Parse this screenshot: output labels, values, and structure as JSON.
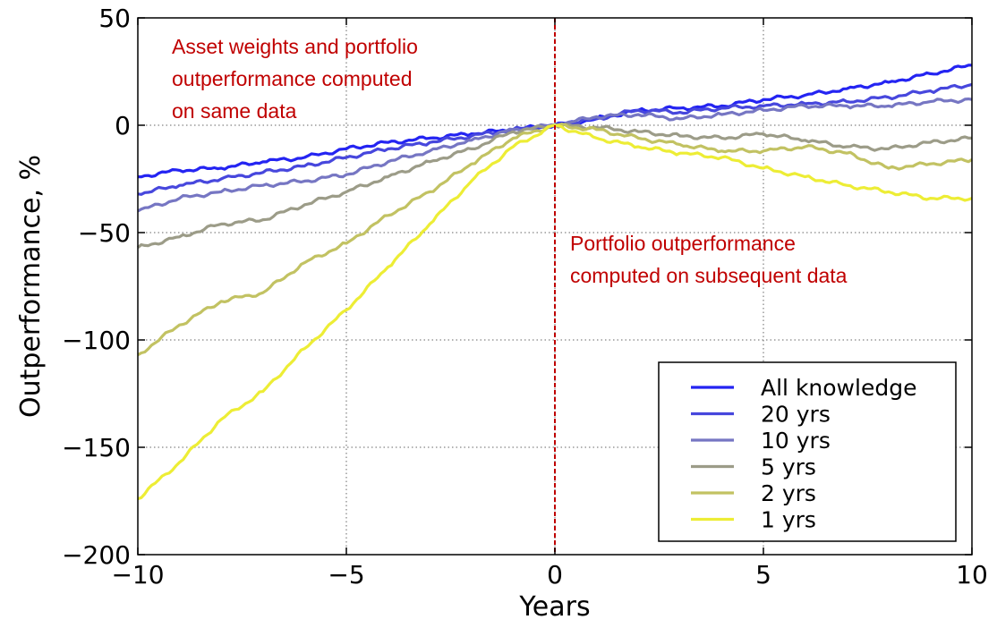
{
  "chart_data": {
    "type": "line",
    "xlabel": "Years",
    "ylabel": "Outperformance, %",
    "xlim": [
      -10,
      10
    ],
    "ylim": [
      -200,
      50
    ],
    "xticks": [
      -10,
      -5,
      0,
      5,
      10
    ],
    "yticks": [
      50,
      0,
      -50,
      -100,
      -150,
      -200
    ],
    "x_tick_labels": [
      "−10",
      "−5",
      "0",
      "5",
      "10"
    ],
    "y_tick_labels": [
      "50",
      "0",
      "−50",
      "−100",
      "−150",
      "−200"
    ],
    "grid": true,
    "grid_style": "dotted",
    "legend_position": "bottom-right",
    "vline": {
      "x": 0,
      "style": "dashed",
      "color": "#c00000"
    },
    "annotations": [
      {
        "lines": [
          "Asset weights and portfolio",
          "outperformance computed",
          "on same data"
        ],
        "color": "#c00000"
      },
      {
        "lines": [
          "Portfolio outperformance",
          "computed on subsequent data"
        ],
        "color": "#c00000"
      }
    ],
    "series": [
      {
        "name": "All knowledge",
        "color": "#2424f2",
        "x": [
          -10,
          -9,
          -8,
          -7,
          -6,
          -5,
          -4,
          -3,
          -2,
          -1,
          0,
          1,
          2,
          3,
          4,
          5,
          6,
          7,
          8,
          9,
          10
        ],
        "y": [
          -24,
          -21,
          -20,
          -17,
          -15,
          -11,
          -8,
          -6,
          -4,
          -2,
          0,
          3,
          7,
          8,
          9,
          12,
          14,
          17,
          20,
          24,
          28
        ]
      },
      {
        "name": "20 yrs",
        "color": "#4747dd",
        "x": [
          -10,
          -9,
          -8,
          -7,
          -6,
          -5,
          -4,
          -3,
          -2,
          -1,
          0,
          1,
          2,
          3,
          4,
          5,
          6,
          7,
          8,
          9,
          10
        ],
        "y": [
          -32,
          -28,
          -25,
          -22,
          -19,
          -15,
          -11,
          -8,
          -5,
          -2,
          0,
          3,
          7,
          6,
          8,
          9,
          10,
          11,
          13,
          16,
          19
        ]
      },
      {
        "name": "10 yrs",
        "color": "#7676c3",
        "x": [
          -10,
          -9,
          -8,
          -7,
          -6,
          -5,
          -4,
          -3,
          -2,
          -1,
          0,
          1,
          2,
          3,
          4,
          5,
          6,
          7,
          8,
          9,
          10
        ],
        "y": [
          -40,
          -34,
          -31,
          -28,
          -26,
          -23,
          -17,
          -12,
          -7,
          -2,
          0,
          4,
          5,
          3,
          5,
          7,
          9,
          9,
          9,
          11,
          12
        ]
      },
      {
        "name": "5 yrs",
        "color": "#9c9c88",
        "x": [
          -10,
          -9,
          -8,
          -7,
          -6,
          -5,
          -4,
          -3,
          -2,
          -1,
          0,
          1,
          2,
          3,
          4,
          5,
          6,
          7,
          8,
          9,
          10
        ],
        "y": [
          -57,
          -52,
          -46,
          -44,
          -37,
          -31,
          -24,
          -17,
          -11,
          -3,
          0,
          -1,
          -3,
          -5,
          -6,
          -4,
          -7,
          -10,
          -11,
          -8,
          -6
        ]
      },
      {
        "name": "2 yrs",
        "color": "#c2c262",
        "x": [
          -10,
          -9,
          -8,
          -7,
          -6,
          -5,
          -4,
          -3,
          -2,
          -1,
          0,
          1,
          2,
          3,
          4,
          5,
          6,
          7,
          8,
          9,
          10
        ],
        "y": [
          -107,
          -93,
          -82,
          -78,
          -64,
          -55,
          -42,
          -31,
          -18,
          -6,
          0,
          -2,
          -6,
          -9,
          -12,
          -12,
          -10,
          -13,
          -20,
          -18,
          -16
        ]
      },
      {
        "name": "1 yrs",
        "color": "#eded35",
        "x": [
          -10,
          -9,
          -8,
          -7,
          -6,
          -5,
          -4,
          -3,
          -2,
          -1,
          0,
          1,
          2,
          3,
          4,
          5,
          6,
          7,
          8,
          9,
          10
        ],
        "y": [
          -174,
          -157,
          -137,
          -124,
          -104,
          -86,
          -66,
          -46,
          -26,
          -10,
          0,
          -6,
          -10,
          -13,
          -15,
          -20,
          -24,
          -28,
          -31,
          -34,
          -34
        ]
      }
    ]
  }
}
